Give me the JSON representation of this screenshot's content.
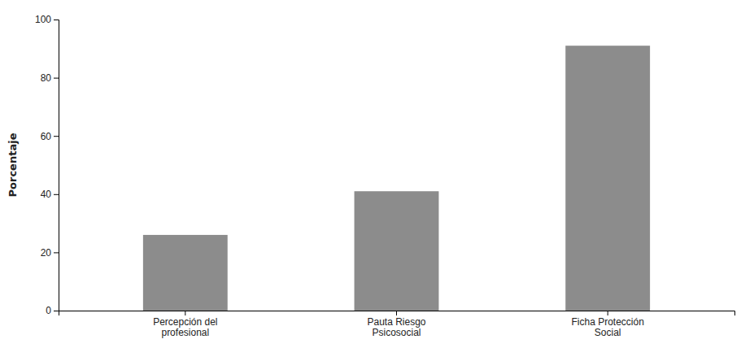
{
  "chart_data": {
    "type": "bar",
    "categories": [
      "Percepción del\nprofesional",
      "Pauta Riesgo\nPsicosocial",
      "Ficha Protección\nSocial"
    ],
    "values": [
      26,
      41,
      91
    ],
    "color": "#8c8c8c",
    "ylabel": "Porcentaje",
    "ylim": [
      0,
      100
    ],
    "yticks": [
      0,
      20,
      40,
      60,
      80,
      100
    ],
    "grid": false
  }
}
